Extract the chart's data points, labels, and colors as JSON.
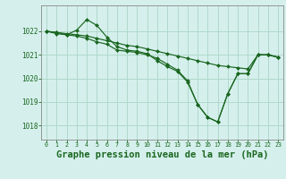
{
  "background_color": "#d5f0ec",
  "grid_color": "#b0d8cc",
  "line_color": "#1a6620",
  "marker_color": "#1a6620",
  "title": "Graphe pression niveau de la mer (hPa)",
  "title_fontsize": 7.5,
  "xlim": [
    -0.5,
    23.5
  ],
  "ylim": [
    1017.4,
    1023.1
  ],
  "yticks": [
    1018,
    1019,
    1020,
    1021,
    1022
  ],
  "xticks": [
    0,
    1,
    2,
    3,
    4,
    5,
    6,
    7,
    8,
    9,
    10,
    11,
    12,
    13,
    14,
    15,
    16,
    17,
    18,
    19,
    20,
    21,
    22,
    23
  ],
  "series": [
    [
      1022.0,
      1021.95,
      1021.9,
      1021.85,
      1021.8,
      1021.7,
      1021.6,
      1021.5,
      1021.4,
      1021.35,
      1021.25,
      1021.15,
      1021.05,
      1020.95,
      1020.85,
      1020.75,
      1020.65,
      1020.55,
      1020.5,
      1020.45,
      1020.4,
      1021.0,
      1021.0,
      1020.9
    ],
    [
      1022.0,
      1021.9,
      1021.85,
      1022.05,
      1022.5,
      1022.25,
      1021.75,
      1021.35,
      1021.2,
      1021.15,
      1021.05,
      1020.75,
      1020.5,
      1020.3,
      1019.85,
      1018.9,
      1018.35,
      1018.15,
      1019.35,
      1020.2,
      1020.2,
      1021.0,
      1021.0,
      1020.9
    ],
    [
      1022.0,
      1021.95,
      1021.85,
      1021.8,
      1021.7,
      1021.55,
      1021.45,
      1021.2,
      1021.15,
      1021.1,
      1021.0,
      1020.85,
      1020.6,
      1020.35,
      1019.9,
      1018.9,
      1018.35,
      1018.15,
      1019.35,
      1020.2,
      1020.2,
      1021.0,
      1021.0,
      1020.9
    ]
  ]
}
